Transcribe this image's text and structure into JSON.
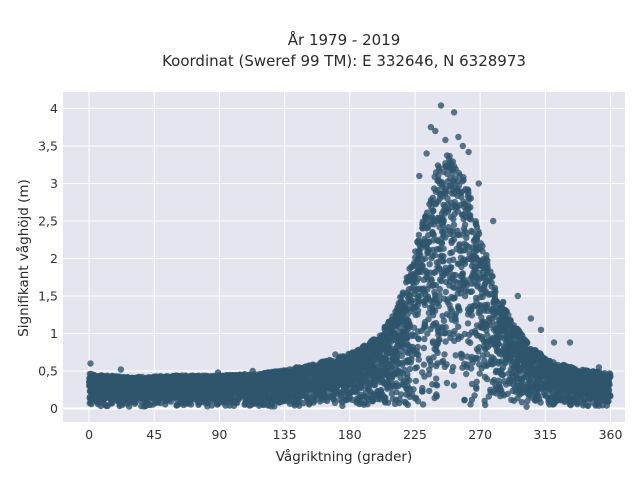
{
  "chart_data": {
    "type": "scatter",
    "title": "År 1979 - 2019",
    "subtitle": "Koordinat (Sweref 99 TM): E 332646, N 6328973",
    "xlabel": "Vågriktning (grader)",
    "ylabel": "Signifikant våghöjd (m)",
    "xlim": [
      -18,
      370
    ],
    "ylim": [
      -0.18,
      4.22
    ],
    "x_ticks": [
      0,
      45,
      90,
      135,
      180,
      225,
      270,
      315,
      360
    ],
    "x_tick_labels": [
      "0",
      "45",
      "90",
      "135",
      "180",
      "225",
      "270",
      "315",
      "360"
    ],
    "y_ticks": [
      0,
      0.5,
      1,
      1.5,
      2,
      2.5,
      3,
      3.5,
      4
    ],
    "y_tick_labels": [
      "0",
      "0,5",
      "1",
      "1,5",
      "2",
      "2,5",
      "3",
      "3,5",
      "4"
    ],
    "grid": true,
    "marker_color": "#2e556d",
    "background_color": "#e5e5ef",
    "envelope": {
      "direction": [
        0,
        10,
        30,
        60,
        90,
        120,
        150,
        170,
        185,
        200,
        212,
        222,
        232,
        240,
        248,
        256,
        262,
        270,
        278,
        290,
        305,
        320,
        340,
        360
      ],
      "max_height": [
        0.45,
        0.42,
        0.4,
        0.42,
        0.42,
        0.45,
        0.55,
        0.65,
        0.75,
        0.95,
        1.3,
        1.9,
        2.6,
        3.2,
        3.4,
        3.2,
        2.9,
        2.3,
        1.8,
        1.2,
        0.8,
        0.6,
        0.5,
        0.45
      ]
    },
    "outliers": [
      {
        "x": 1,
        "y": 0.6
      },
      {
        "x": 22,
        "y": 0.52
      },
      {
        "x": 89,
        "y": 0.48
      },
      {
        "x": 113,
        "y": 0.5
      },
      {
        "x": 170,
        "y": 0.72
      },
      {
        "x": 228,
        "y": 3.1
      },
      {
        "x": 233,
        "y": 3.4
      },
      {
        "x": 236,
        "y": 3.75
      },
      {
        "x": 239,
        "y": 3.7
      },
      {
        "x": 243,
        "y": 4.04
      },
      {
        "x": 246,
        "y": 3.58
      },
      {
        "x": 252,
        "y": 3.95
      },
      {
        "x": 255,
        "y": 3.62
      },
      {
        "x": 258,
        "y": 3.5
      },
      {
        "x": 262,
        "y": 3.42
      },
      {
        "x": 269,
        "y": 3.0
      },
      {
        "x": 279,
        "y": 2.5
      },
      {
        "x": 296,
        "y": 1.5
      },
      {
        "x": 305,
        "y": 1.2
      },
      {
        "x": 312,
        "y": 1.05
      },
      {
        "x": 321,
        "y": 0.88
      },
      {
        "x": 332,
        "y": 0.88
      },
      {
        "x": 352,
        "y": 0.55
      }
    ]
  }
}
